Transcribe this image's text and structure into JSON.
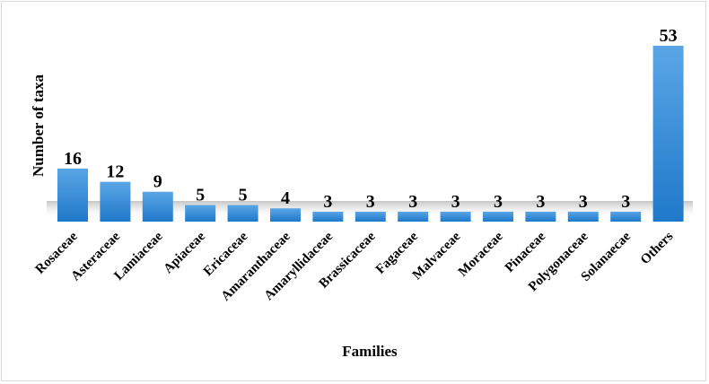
{
  "chart_data": {
    "type": "bar",
    "title": "",
    "xlabel": "Families",
    "ylabel": "Number of taxa",
    "categories": [
      "Rosaceae",
      "Asteraceae",
      "Lamiaceae",
      "Apiaceae",
      "Ericaceae",
      "Amaranthaceae",
      "Amaryllidaceae",
      "Brassicaceae",
      "Fagaceae",
      "Malvaceae",
      "Moraceae",
      "Pinaceae",
      "Polygonaceae",
      "Solanaecae",
      "Others"
    ],
    "values": [
      16,
      12,
      9,
      5,
      5,
      4,
      3,
      3,
      3,
      3,
      3,
      3,
      3,
      3,
      53
    ],
    "ylim": [
      0,
      53
    ],
    "grid": false,
    "legend": "none",
    "bar_color": "#2e86d6",
    "bar_color_light": "#5aa6e6"
  }
}
